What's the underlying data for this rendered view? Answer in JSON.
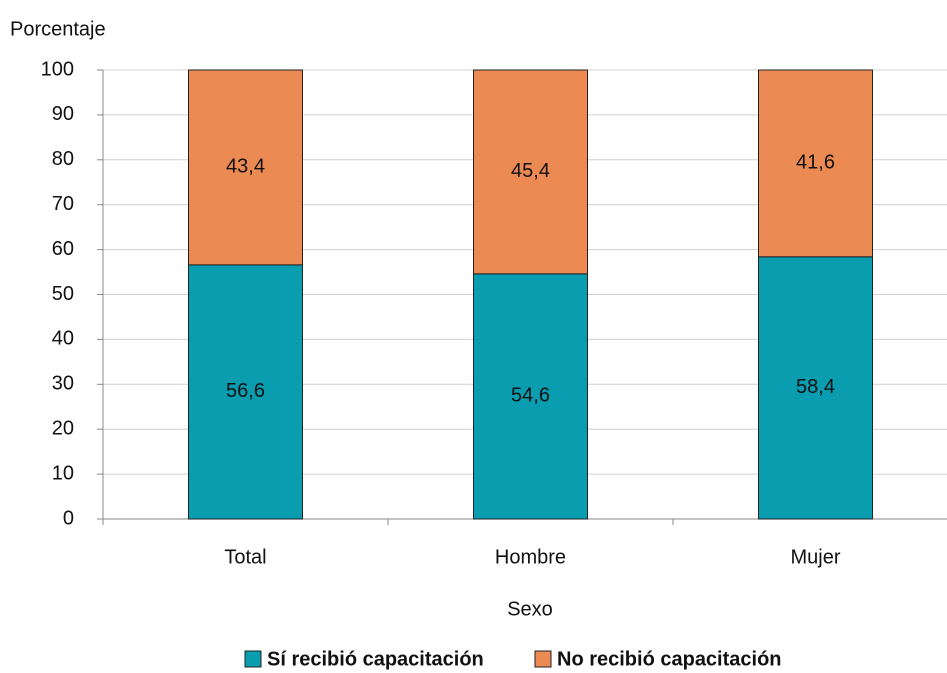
{
  "chart_data": {
    "type": "stacked_bar",
    "y_label": "Porcentaje",
    "x_label": "Sexo",
    "categories": [
      "Total",
      "Hombre",
      "Mujer"
    ],
    "series": [
      {
        "name": "Sí recibió capacitación",
        "color": "#0a9db0",
        "values": [
          56.6,
          54.6,
          58.4
        ],
        "value_labels": [
          "56,6",
          "54,6",
          "58,4"
        ]
      },
      {
        "name": "No recibió capacitación",
        "color": "#ec8a54",
        "values": [
          43.4,
          45.4,
          41.6
        ],
        "value_labels": [
          "43,4",
          "45,4",
          "41,6"
        ]
      }
    ],
    "ylim": [
      0,
      100
    ],
    "yticks": [
      0,
      10,
      20,
      30,
      40,
      50,
      60,
      70,
      80,
      90,
      100
    ],
    "grid": true,
    "legend": "bottom"
  }
}
